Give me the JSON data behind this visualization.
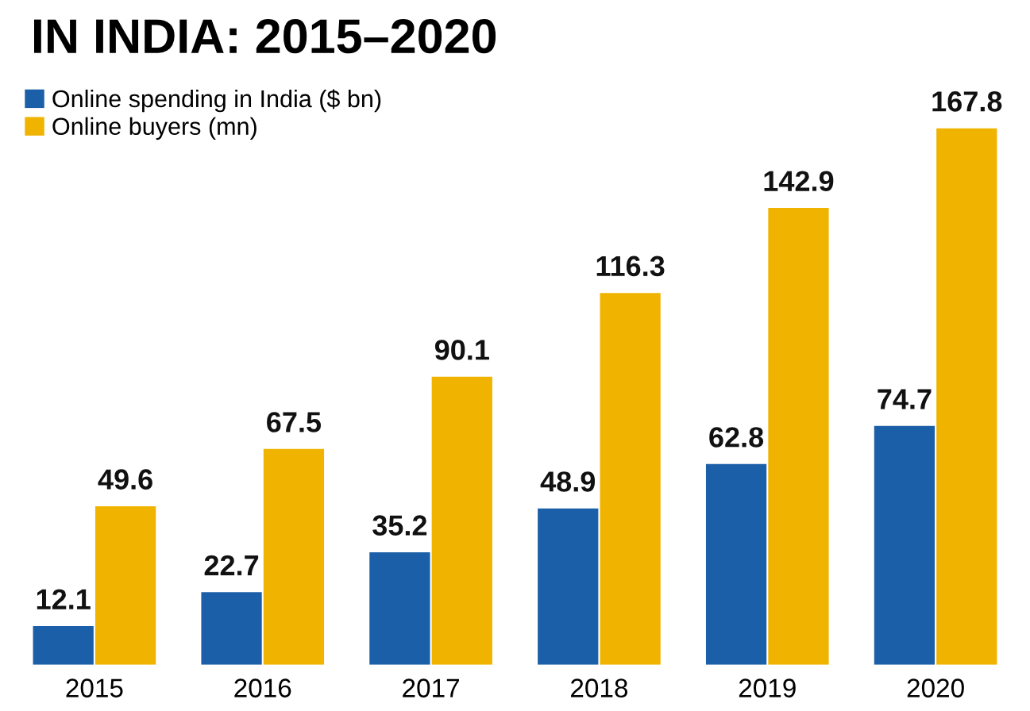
{
  "chart_data": {
    "type": "bar",
    "title": "IN INDIA: 2015–2020",
    "categories": [
      "2015",
      "2016",
      "2017",
      "2018",
      "2019",
      "2020"
    ],
    "series": [
      {
        "name": "Online spending in India ($ bn)",
        "color": "#1b5fa8",
        "values": [
          12.1,
          22.7,
          35.2,
          48.9,
          62.8,
          74.7
        ]
      },
      {
        "name": "Online buyers (mn)",
        "color": "#f0b400",
        "values": [
          49.6,
          67.5,
          90.1,
          116.3,
          142.9,
          167.8
        ]
      }
    ],
    "data_labels": true,
    "legend": "top left",
    "grid": false
  }
}
